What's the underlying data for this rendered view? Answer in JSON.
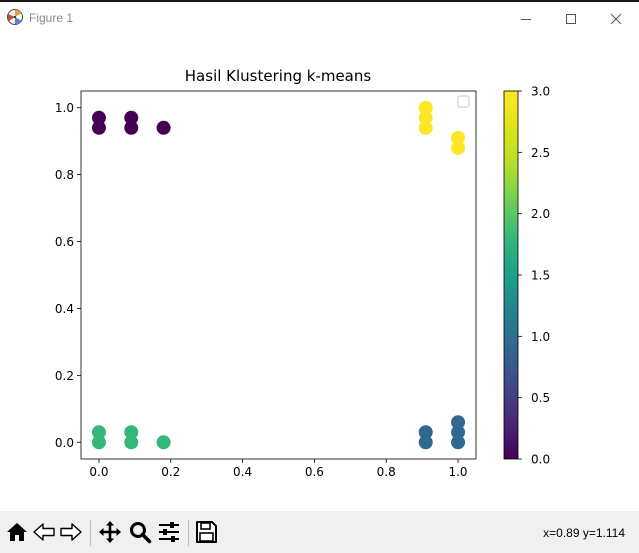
{
  "window": {
    "title": "Figure 1",
    "icon": "matplotlib-logo-icon",
    "controls": [
      "minimize-icon",
      "maximize-icon",
      "close-icon"
    ]
  },
  "chart_data": {
    "type": "scatter",
    "title": "Hasil Klustering k-means",
    "xlabel": "",
    "ylabel": "",
    "xlim": [
      -0.05,
      1.05
    ],
    "ylim": [
      -0.05,
      1.05
    ],
    "xticks": [
      "0.0",
      "0.2",
      "0.4",
      "0.6",
      "0.8",
      "1.0"
    ],
    "yticks": [
      "0.0",
      "0.2",
      "0.4",
      "0.6",
      "0.8",
      "1.0"
    ],
    "colormap": "viridis",
    "points": [
      {
        "x": 0.0,
        "y": 0.97,
        "cluster": 0
      },
      {
        "x": 0.0,
        "y": 0.94,
        "cluster": 0
      },
      {
        "x": 0.09,
        "y": 0.97,
        "cluster": 0
      },
      {
        "x": 0.09,
        "y": 0.94,
        "cluster": 0
      },
      {
        "x": 0.18,
        "y": 0.94,
        "cluster": 0
      },
      {
        "x": 0.91,
        "y": 0.03,
        "cluster": 1
      },
      {
        "x": 0.91,
        "y": 0.0,
        "cluster": 1
      },
      {
        "x": 1.0,
        "y": 0.06,
        "cluster": 1
      },
      {
        "x": 1.0,
        "y": 0.03,
        "cluster": 1
      },
      {
        "x": 1.0,
        "y": 0.0,
        "cluster": 1
      },
      {
        "x": 0.0,
        "y": 0.03,
        "cluster": 2
      },
      {
        "x": 0.0,
        "y": 0.0,
        "cluster": 2
      },
      {
        "x": 0.09,
        "y": 0.03,
        "cluster": 2
      },
      {
        "x": 0.09,
        "y": 0.0,
        "cluster": 2
      },
      {
        "x": 0.18,
        "y": 0.0,
        "cluster": 2
      },
      {
        "x": 0.91,
        "y": 1.0,
        "cluster": 3
      },
      {
        "x": 0.91,
        "y": 0.97,
        "cluster": 3
      },
      {
        "x": 0.91,
        "y": 0.94,
        "cluster": 3
      },
      {
        "x": 1.0,
        "y": 0.91,
        "cluster": 3
      },
      {
        "x": 1.0,
        "y": 0.88,
        "cluster": 3
      }
    ],
    "cluster_colors": [
      "#440154",
      "#31688e",
      "#35b779",
      "#fde725"
    ],
    "legend": "top-right, empty",
    "colorbar": {
      "range": [
        0,
        3
      ],
      "ticks": [
        "0.0",
        "0.5",
        "1.0",
        "1.5",
        "2.0",
        "2.5",
        "3.0"
      ]
    },
    "grid": false
  },
  "toolbar": {
    "buttons": [
      "home-icon",
      "back-icon",
      "forward-icon",
      "pan-icon",
      "zoom-icon",
      "configure-subplots-icon",
      "save-icon"
    ],
    "coords_text": "x=0.89 y=1.114"
  }
}
